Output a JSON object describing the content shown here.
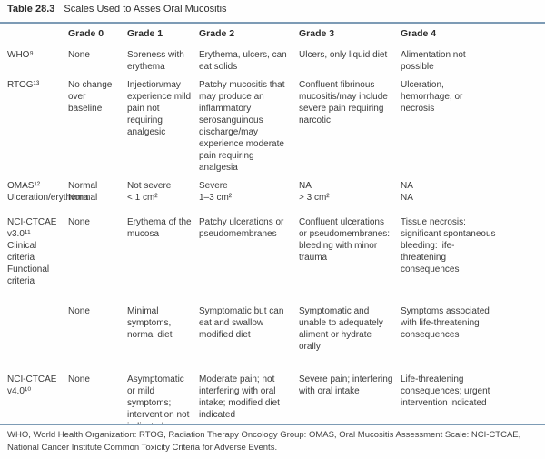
{
  "caption": {
    "label": "Table 28.3",
    "title": "Scales Used to Asses Oral Mucositis"
  },
  "header": {
    "columns": [
      "Grade 0",
      "Grade 1",
      "Grade 2",
      "Grade 3",
      "Grade 4"
    ]
  },
  "table": {
    "rows": [
      {
        "label": [
          "WHO⁹"
        ],
        "cells": [
          [
            "None"
          ],
          [
            "Soreness with erythema"
          ],
          [
            "Erythema, ulcers, can eat solids"
          ],
          [
            "Ulcers, only liquid diet"
          ],
          [
            "Alimentation not possible"
          ]
        ]
      },
      {
        "label": [
          "RTOG¹³"
        ],
        "cells": [
          [
            "No change over baseline"
          ],
          [
            "Injection/may experience mild pain not requiring analgesic"
          ],
          [
            "Patchy mucositis that may produce an inflammatory serosanguinous discharge/may experience moderate pain requiring analgesia"
          ],
          [
            "Confluent fibrinous mucositis/may include severe pain requiring narcotic"
          ],
          [
            "Ulceration, hemorrhage, or necrosis"
          ]
        ]
      },
      {
        "label": [
          "OMAS¹²",
          "Ulceration/erythema"
        ],
        "cells": [
          [
            "Normal",
            "Normal"
          ],
          [
            "Not severe",
            "< 1 cm²"
          ],
          [
            "Severe",
            "1–3 cm²"
          ],
          [
            "NA",
            "> 3 cm²"
          ],
          [
            "NA",
            "NA"
          ]
        ]
      },
      {
        "label": [
          "NCI-CTCAE v3.0¹¹",
          "Clinical criteria",
          "Functional criteria"
        ],
        "cells": [
          [
            "None"
          ],
          [
            "Erythema of the mucosa"
          ],
          [
            "Patchy ulcerations or pseudomembranes"
          ],
          [
            "Confluent ulcerations or pseudomembranes: bleeding with minor trauma"
          ],
          [
            "Tissue necrosis: significant spontaneous bleeding: life-threatening consequences"
          ]
        ]
      },
      {
        "label": [],
        "cells": [
          [
            "None"
          ],
          [
            "Minimal symptoms, normal diet"
          ],
          [
            "Symptomatic but can eat and swallow modified diet"
          ],
          [
            "Symptomatic and unable to adequately aliment or hydrate orally"
          ],
          [
            "Symptoms associated with life-threatening consequences"
          ]
        ]
      },
      {
        "label": [
          "NCI-CTCAE v4.0¹⁰"
        ],
        "cells": [
          [
            "None"
          ],
          [
            "Asymptomatic or mild symptoms; intervention not indicated"
          ],
          [
            "Moderate pain; not interfering with oral intake; modified diet indicated"
          ],
          [
            "Severe pain; interfering with oral intake"
          ],
          [
            "Life-threatening consequences; urgent intervention indicated"
          ]
        ]
      }
    ]
  },
  "footnote": "WHO, World Health Organization: RTOG, Radiation Therapy Oncology Group: OMAS, Oral Mucositis Assessment Scale: NCI-CTCAE, National Cancer Institute Common Toxicity Criteria for Adverse Events.",
  "colors": {
    "rule_heavy": "#7d9bb5",
    "rule_light": "#8fa9c0",
    "text": "#3a3a3a"
  }
}
